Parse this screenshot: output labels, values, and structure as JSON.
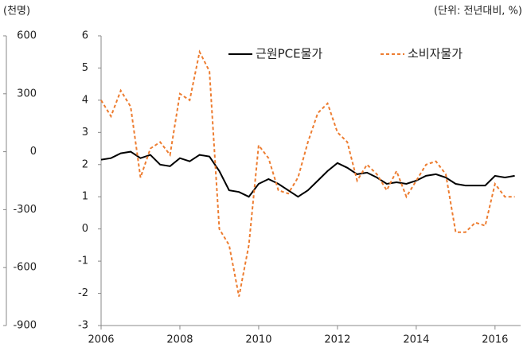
{
  "chart_data": [
    {
      "type": "bar",
      "y_label": "(천명)",
      "ylim": [
        -900,
        600
      ],
      "yticks": [
        600,
        300,
        0,
        -300,
        -600,
        -900
      ]
    },
    {
      "type": "line",
      "y_label": "(단위: 전년대비, %)",
      "x": [
        2006,
        2006.25,
        2006.5,
        2006.75,
        2007,
        2007.25,
        2007.5,
        2007.75,
        2008,
        2008.25,
        2008.5,
        2008.75,
        2009,
        2009.25,
        2009.5,
        2009.75,
        2010,
        2010.25,
        2010.5,
        2010.75,
        2011,
        2011.25,
        2011.5,
        2011.75,
        2012,
        2012.25,
        2012.5,
        2012.75,
        2013,
        2013.25,
        2013.5,
        2013.75,
        2014,
        2014.25,
        2014.5,
        2014.75,
        2015,
        2015.25,
        2015.5,
        2015.75,
        2016,
        2016.25,
        2016.5
      ],
      "series": [
        {
          "name": "근원PCE물가",
          "color": "#000000",
          "dash": false,
          "values": [
            2.15,
            2.2,
            2.35,
            2.4,
            2.2,
            2.3,
            2.0,
            1.95,
            2.2,
            2.1,
            2.3,
            2.25,
            1.8,
            1.2,
            1.15,
            1.0,
            1.4,
            1.55,
            1.4,
            1.2,
            1.0,
            1.2,
            1.5,
            1.8,
            2.05,
            1.9,
            1.7,
            1.75,
            1.6,
            1.4,
            1.45,
            1.4,
            1.5,
            1.65,
            1.7,
            1.6,
            1.4,
            1.35,
            1.35,
            1.35,
            1.65,
            1.6,
            1.65
          ]
        },
        {
          "name": "소비자물가",
          "color": "#ed7d31",
          "dash": true,
          "values": [
            4.0,
            3.5,
            4.3,
            3.8,
            1.6,
            2.5,
            2.7,
            2.3,
            4.2,
            4.0,
            5.5,
            4.9,
            0.0,
            -0.5,
            -2.1,
            -0.5,
            2.6,
            2.2,
            1.2,
            1.1,
            1.6,
            2.7,
            3.6,
            3.9,
            3.0,
            2.7,
            1.5,
            2.0,
            1.7,
            1.2,
            1.8,
            1.0,
            1.5,
            2.0,
            2.1,
            1.7,
            -0.1,
            -0.1,
            0.2,
            0.1,
            1.4,
            1.0,
            1.0
          ]
        }
      ],
      "xlim": [
        2006,
        2016.65
      ],
      "xticks": [
        2006,
        2008,
        2010,
        2012,
        2014,
        2016
      ],
      "ylim": [
        -3,
        6
      ],
      "yticks": [
        6,
        5,
        4,
        3,
        2,
        1,
        0,
        -1,
        -2,
        -3
      ],
      "legend": "top"
    }
  ]
}
